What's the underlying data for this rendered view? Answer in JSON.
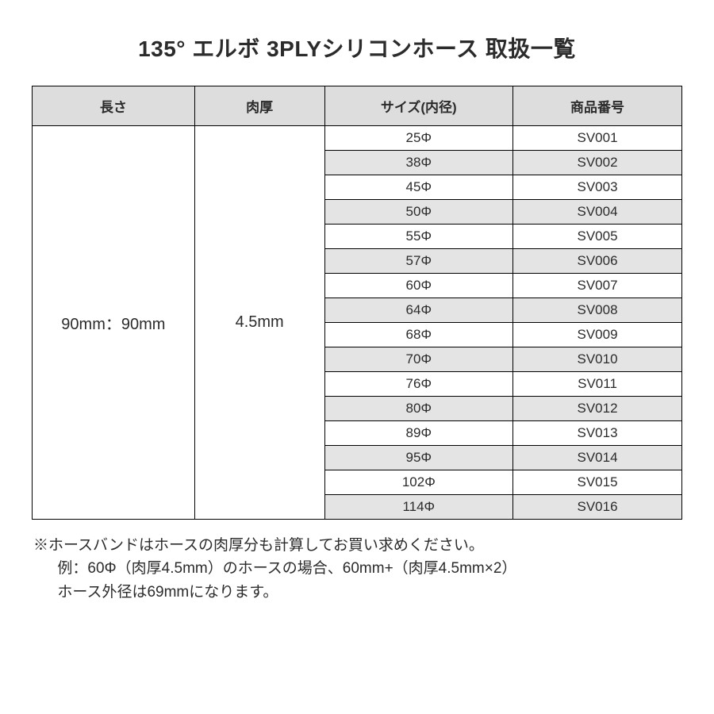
{
  "title": "135° エルボ 3PLYシリコンホース 取扱一覧",
  "table": {
    "headers": {
      "length": "長さ",
      "thickness": "肉厚",
      "size": "サイズ(内径)",
      "code": "商品番号"
    },
    "merged": {
      "length": "90mm：90mm",
      "thickness": "4.5mm"
    },
    "rows": [
      {
        "size": "25Φ",
        "code": "SV001"
      },
      {
        "size": "38Φ",
        "code": "SV002"
      },
      {
        "size": "45Φ",
        "code": "SV003"
      },
      {
        "size": "50Φ",
        "code": "SV004"
      },
      {
        "size": "55Φ",
        "code": "SV005"
      },
      {
        "size": "57Φ",
        "code": "SV006"
      },
      {
        "size": "60Φ",
        "code": "SV007"
      },
      {
        "size": "64Φ",
        "code": "SV008"
      },
      {
        "size": "68Φ",
        "code": "SV009"
      },
      {
        "size": "70Φ",
        "code": "SV010"
      },
      {
        "size": "76Φ",
        "code": "SV011"
      },
      {
        "size": "80Φ",
        "code": "SV012"
      },
      {
        "size": "89Φ",
        "code": "SV013"
      },
      {
        "size": "95Φ",
        "code": "SV014"
      },
      {
        "size": "102Φ",
        "code": "SV015"
      },
      {
        "size": "114Φ",
        "code": "SV016"
      }
    ]
  },
  "footnote": {
    "line1": "※ホースバンドはホースの肉厚分も計算してお買い求めください。",
    "line2": "例：60Φ（肉厚4.5mm）のホースの場合、60mm+（肉厚4.5mm×2）",
    "line3": "ホース外径は69mmになります。"
  },
  "style": {
    "header_bg": "#dddddd",
    "alt_row_bg": "#e4e4e4",
    "border_color": "#000000",
    "text_color": "#2b2b2b",
    "background_color": "#ffffff"
  }
}
